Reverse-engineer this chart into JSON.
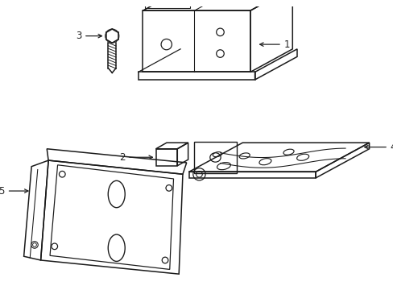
{
  "bg_color": "#ffffff",
  "line_color": "#1a1a1a",
  "line_width": 1.1,
  "label_fontsize": 8.5,
  "label_color": "#222222"
}
